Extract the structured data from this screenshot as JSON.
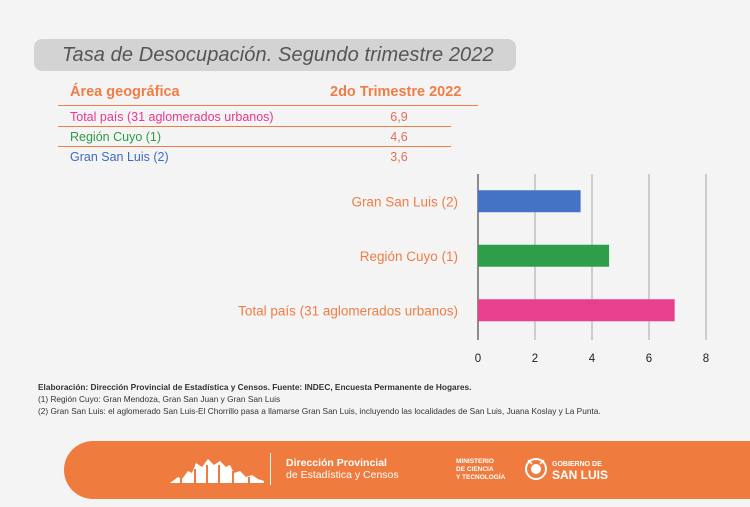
{
  "title": "Tasa de Desocupación. Segundo trimestre 2022",
  "table": {
    "col1_header": "Área geográfica",
    "col2_header": "2do Trimestre 2022",
    "rows": [
      {
        "label": "Total país (31 aglomerados urbanos)",
        "value": "6,9",
        "color": "#e8388f"
      },
      {
        "label": "Región Cuyo (1)",
        "value": "4,6",
        "color": "#2f9a45"
      },
      {
        "label": "Gran San Luis (2)",
        "value": "3,6",
        "color": "#3f6ac2"
      }
    ]
  },
  "chart_data": {
    "type": "bar",
    "orientation": "horizontal",
    "categories": [
      "Gran San Luis (2)",
      "Región Cuyo (1)",
      "Total país (31 aglomerados urbanos)"
    ],
    "values": [
      3.6,
      4.6,
      6.9
    ],
    "colors": [
      "#4472c4",
      "#2e9e4a",
      "#e8408f"
    ],
    "xlim": [
      0,
      8
    ],
    "xticks": [
      "0",
      "2",
      "4",
      "6",
      "8"
    ],
    "grid": true,
    "label_color": "#ef7d45"
  },
  "footnotes": {
    "source": "Elaboración:  Dirección Provincial de Estadística y Censos. Fuente: INDEC, Encuesta Permanente de Hogares.",
    "note1": "(1) Región Cuyo: Gran Mendoza, Gran San Juan y Gran San Luis",
    "note2": "(2) Gran San Luis: el aglomerado San Luis-El Chorrillo pasa a llamarse Gran San Luis, incluyendo las localidades de San Luis, Juana Koslay y La Punta."
  },
  "footer": {
    "org_line1": "Dirección Provincial",
    "org_line2": "de Estadística y Censos",
    "min_line1": "MINISTERIO",
    "min_line2": "DE CIENCIA",
    "min_line3": "Y TECNOLOGÍA",
    "gob_line1": "GOBIERNO DE",
    "gob_line2": "SAN LUIS"
  }
}
